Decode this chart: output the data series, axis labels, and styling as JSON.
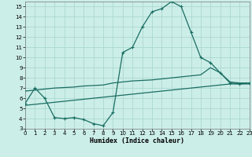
{
  "xlabel": "Humidex (Indice chaleur)",
  "bg_color": "#cceee8",
  "grid_color": "#aad8d0",
  "line_color": "#1a6e62",
  "xlim": [
    0,
    23
  ],
  "ylim": [
    3,
    15.5
  ],
  "yticks": [
    3,
    4,
    5,
    6,
    7,
    8,
    9,
    10,
    11,
    12,
    13,
    14,
    15
  ],
  "xticks": [
    0,
    1,
    2,
    3,
    4,
    5,
    6,
    7,
    8,
    9,
    10,
    11,
    12,
    13,
    14,
    15,
    16,
    17,
    18,
    19,
    20,
    21,
    22,
    23
  ],
  "line1_x": [
    0,
    1,
    2,
    3,
    4,
    5,
    6,
    7,
    8,
    9,
    10,
    11,
    12,
    13,
    14,
    15,
    16,
    17,
    18,
    19,
    20,
    21,
    22,
    23
  ],
  "line1_y": [
    5.5,
    7.0,
    6.0,
    4.1,
    4.0,
    4.1,
    3.9,
    3.5,
    3.3,
    4.6,
    10.5,
    11.0,
    13.0,
    14.5,
    14.8,
    15.5,
    15.0,
    12.5,
    10.0,
    9.5,
    8.5,
    7.5,
    7.4,
    7.5
  ],
  "line2_x": [
    0,
    1,
    2,
    3,
    4,
    5,
    6,
    7,
    8,
    9,
    10,
    11,
    12,
    13,
    14,
    15,
    16,
    17,
    18,
    19,
    20,
    21,
    22,
    23
  ],
  "line2_y": [
    6.7,
    6.8,
    6.9,
    7.0,
    7.05,
    7.1,
    7.2,
    7.25,
    7.3,
    7.5,
    7.6,
    7.7,
    7.75,
    7.8,
    7.9,
    8.0,
    8.1,
    8.2,
    8.3,
    9.0,
    8.5,
    7.6,
    7.5,
    7.5
  ],
  "line3_x": [
    0,
    1,
    2,
    3,
    4,
    5,
    6,
    7,
    8,
    9,
    10,
    11,
    12,
    13,
    14,
    15,
    16,
    17,
    18,
    19,
    20,
    21,
    22,
    23
  ],
  "line3_y": [
    5.3,
    5.4,
    5.5,
    5.6,
    5.7,
    5.8,
    5.9,
    6.0,
    6.1,
    6.2,
    6.3,
    6.4,
    6.5,
    6.6,
    6.7,
    6.8,
    6.9,
    7.0,
    7.1,
    7.2,
    7.3,
    7.4,
    7.4,
    7.4
  ],
  "linewidth": 0.9,
  "markersize": 3.0,
  "tick_fontsize": 5.0,
  "xlabel_fontsize": 6.0
}
